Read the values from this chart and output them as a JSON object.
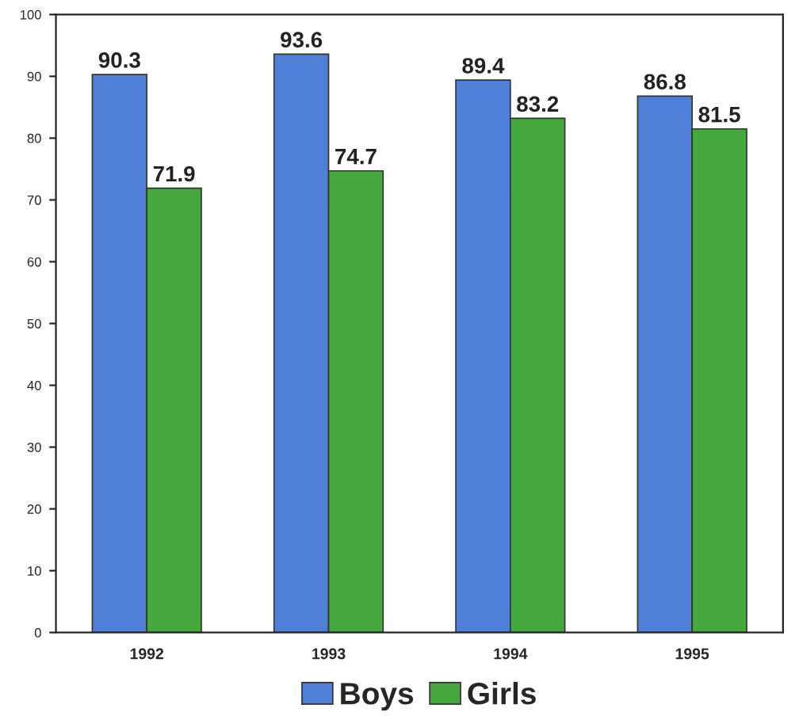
{
  "chart_data": {
    "type": "bar",
    "categories": [
      "1992",
      "1993",
      "1994",
      "1995"
    ],
    "series": [
      {
        "name": "Boys",
        "color": "#4f7fd6",
        "values": [
          90.3,
          93.6,
          89.4,
          86.8
        ]
      },
      {
        "name": "Girls",
        "color": "#45a83c",
        "values": [
          71.9,
          74.7,
          83.2,
          81.5
        ]
      }
    ],
    "ylim": [
      0,
      100
    ],
    "yticks": [
      0,
      10,
      20,
      30,
      40,
      50,
      60,
      70,
      80,
      90,
      100
    ],
    "data_labels": true,
    "legend": "bottom",
    "grid": false
  }
}
